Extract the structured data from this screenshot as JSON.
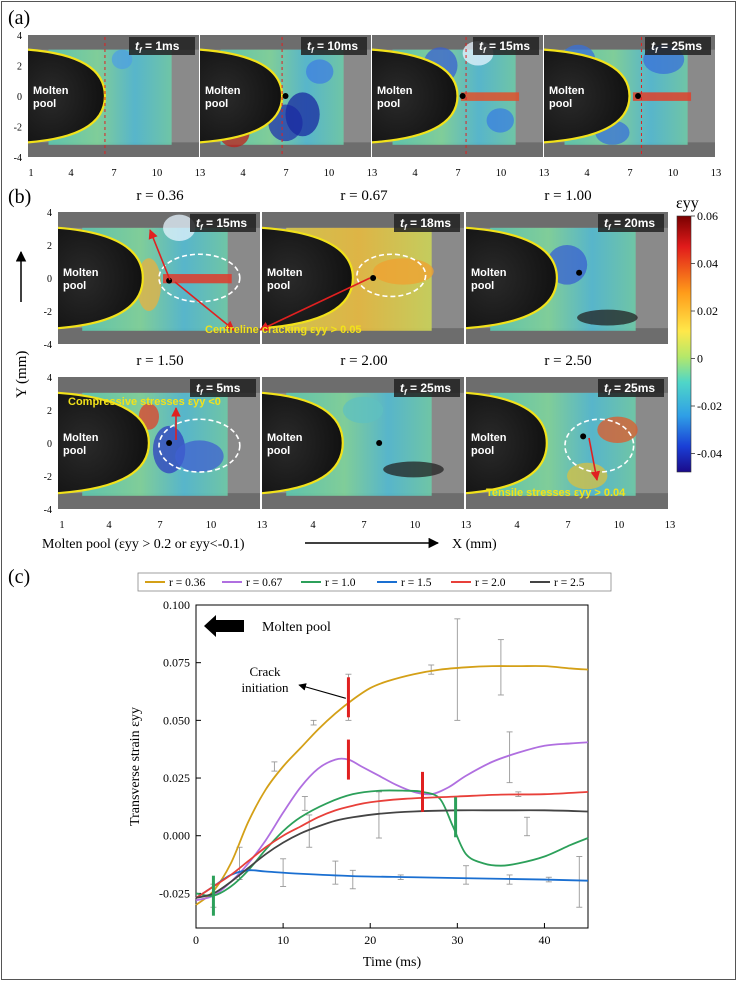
{
  "figure": {
    "panel_labels": [
      "(a)",
      "(b)",
      "(c)"
    ],
    "colorbar": {
      "label": "εyy",
      "ticks": [
        "0.06",
        "0.04",
        "0.02",
        "0",
        "-0.02",
        "-0.04"
      ]
    },
    "panel_a": {
      "frames": [
        {
          "time": "1ms"
        },
        {
          "time": "10ms"
        },
        {
          "time": "15ms"
        },
        {
          "time": "25ms"
        }
      ],
      "y_ticks": [
        "4",
        "2",
        "0",
        "-2",
        "-4"
      ],
      "x_ticks": [
        "1",
        "4",
        "7",
        "10",
        "13"
      ],
      "pool_label_line1": "Molten",
      "pool_label_line2": "pool"
    },
    "panel_b": {
      "frames": [
        {
          "ratio": "r = 0.36",
          "time": "15ms"
        },
        {
          "ratio": "r = 0.67",
          "time": "18ms"
        },
        {
          "ratio": "r = 1.00",
          "time": "20ms"
        },
        {
          "ratio": "r = 1.50",
          "time": "5ms"
        },
        {
          "ratio": "r = 2.00",
          "time": "25ms"
        },
        {
          "ratio": "r = 2.50",
          "time": "25ms"
        }
      ],
      "y_axis_label": "Y (mm)",
      "x_axis_label": "X (mm)",
      "y_ticks": [
        "4",
        "2",
        "0",
        "-2",
        "-4"
      ],
      "x_ticks": [
        "1",
        "4",
        "7",
        "10",
        "13"
      ],
      "annotations": {
        "centreline": "Centreline cracking εyy > 0.05",
        "compressive": "Compressive stresses εyy <0",
        "tensile": "Tensile stresses εyy > 0.04"
      },
      "footnote": "Molten pool (εyy > 0.2 or εyy<-0.1)",
      "time_prefix": "t",
      "time_sub": "f"
    }
  },
  "chart_data": {
    "type": "line",
    "title": "",
    "xlabel": "Time (ms)",
    "ylabel": "Transverse strain εyy",
    "xlim": [
      0,
      45
    ],
    "ylim": [
      -0.04,
      0.1
    ],
    "xticks": [
      0,
      10,
      20,
      30,
      40
    ],
    "yticks": [
      -0.025,
      0.0,
      0.025,
      0.05,
      0.075,
      0.1
    ],
    "ytick_labels": [
      "-0.025",
      "0.000",
      "0.025",
      "0.050",
      "0.075",
      "0.100"
    ],
    "legend_position": "top",
    "series": [
      {
        "name": "r = 0.36",
        "color": "#d4a017",
        "x": [
          0,
          2,
          4,
          6,
          8,
          10,
          12,
          14,
          16,
          18,
          20,
          22,
          25,
          28,
          31,
          34,
          37,
          40,
          43,
          45
        ],
        "y": [
          -0.03,
          -0.024,
          -0.012,
          0.006,
          0.02,
          0.03,
          0.038,
          0.046,
          0.053,
          0.059,
          0.064,
          0.067,
          0.07,
          0.072,
          0.073,
          0.0735,
          0.0735,
          0.0735,
          0.0725,
          0.072
        ]
      },
      {
        "name": "r = 0.67",
        "color": "#b06fe0",
        "x": [
          0,
          2,
          4,
          6,
          8,
          10,
          12,
          14,
          16,
          17.5,
          19,
          21,
          23,
          25,
          27,
          29,
          31,
          34,
          37,
          40,
          43,
          45
        ],
        "y": [
          -0.028,
          -0.026,
          -0.02,
          -0.012,
          -0.002,
          0.01,
          0.021,
          0.029,
          0.033,
          0.033,
          0.03,
          0.026,
          0.022,
          0.019,
          0.018,
          0.021,
          0.026,
          0.032,
          0.036,
          0.039,
          0.04,
          0.0405
        ]
      },
      {
        "name": "r = 1.0",
        "color": "#2ca05a",
        "x": [
          0,
          2,
          4,
          6,
          8,
          10,
          12,
          15,
          18,
          21,
          24,
          26,
          28,
          29.5,
          31,
          33,
          35,
          37,
          40,
          43,
          45
        ],
        "y": [
          -0.025,
          -0.026,
          -0.022,
          -0.015,
          -0.006,
          0.002,
          0.008,
          0.014,
          0.018,
          0.0195,
          0.0195,
          0.019,
          0.016,
          0.004,
          -0.008,
          -0.012,
          -0.013,
          -0.012,
          -0.009,
          -0.004,
          -0.001
        ]
      },
      {
        "name": "r = 1.5",
        "color": "#1a6fd1",
        "x": [
          0,
          2,
          4,
          6,
          8,
          12,
          18,
          25,
          32,
          40,
          45
        ],
        "y": [
          -0.027,
          -0.022,
          -0.017,
          -0.015,
          -0.0155,
          -0.0165,
          -0.0175,
          -0.018,
          -0.0185,
          -0.019,
          -0.0195
        ]
      },
      {
        "name": "r = 2.0",
        "color": "#e8403a",
        "x": [
          0,
          2,
          4,
          6,
          8,
          10,
          12,
          14,
          16,
          18,
          20,
          24,
          30,
          35,
          40,
          45
        ],
        "y": [
          -0.027,
          -0.022,
          -0.017,
          -0.011,
          -0.005,
          0.0,
          0.004,
          0.008,
          0.011,
          0.013,
          0.0145,
          0.016,
          0.017,
          0.0178,
          0.018,
          0.019
        ]
      },
      {
        "name": "r = 2.5",
        "color": "#444444",
        "x": [
          0,
          2,
          4,
          6,
          8,
          10,
          12,
          14,
          16,
          18,
          21,
          25,
          30,
          35,
          40,
          45
        ],
        "y": [
          -0.027,
          -0.025,
          -0.02,
          -0.014,
          -0.008,
          -0.003,
          0.001,
          0.004,
          0.0065,
          0.008,
          0.0095,
          0.0105,
          0.011,
          0.011,
          0.011,
          0.0105
        ]
      }
    ],
    "error_bars": [
      {
        "x": 2,
        "y": -0.026,
        "err": 0.005
      },
      {
        "x": 5,
        "y": -0.012,
        "err": 0.007
      },
      {
        "x": 9,
        "y": 0.03,
        "err": 0.002
      },
      {
        "x": 10,
        "y": -0.016,
        "err": 0.006
      },
      {
        "x": 12.5,
        "y": 0.014,
        "err": 0.003
      },
      {
        "x": 13,
        "y": 0.002,
        "err": 0.007
      },
      {
        "x": 13.5,
        "y": 0.049,
        "err": 0.001
      },
      {
        "x": 16,
        "y": -0.016,
        "err": 0.005
      },
      {
        "x": 17.5,
        "y": 0.06,
        "err": 0.01
      },
      {
        "x": 18,
        "y": -0.019,
        "err": 0.004
      },
      {
        "x": 21,
        "y": 0.009,
        "err": 0.01
      },
      {
        "x": 23.5,
        "y": -0.018,
        "err": 0.001
      },
      {
        "x": 27,
        "y": 0.072,
        "err": 0.002
      },
      {
        "x": 30,
        "y": 0.072,
        "err": 0.022
      },
      {
        "x": 31,
        "y": -0.017,
        "err": 0.004
      },
      {
        "x": 35,
        "y": 0.073,
        "err": 0.012
      },
      {
        "x": 36,
        "y": 0.034,
        "err": 0.011
      },
      {
        "x": 36,
        "y": -0.019,
        "err": 0.002
      },
      {
        "x": 37,
        "y": 0.018,
        "err": 0.001
      },
      {
        "x": 38,
        "y": 0.004,
        "err": 0.004
      },
      {
        "x": 40.5,
        "y": -0.019,
        "err": 0.001
      },
      {
        "x": 44,
        "y": -0.02,
        "err": 0.011
      }
    ],
    "markers": [
      {
        "x": 17.5,
        "y": 0.06,
        "color": "#e02020"
      },
      {
        "x": 17.5,
        "y": 0.033,
        "color": "#e02020"
      },
      {
        "x": 26,
        "y": 0.019,
        "color": "#e02020"
      },
      {
        "x": 29.8,
        "y": 0.008,
        "color": "#2ca05a"
      },
      {
        "x": 2,
        "y": -0.026,
        "color": "#2ca05a"
      }
    ],
    "annotations": {
      "molten_pool": "Molten pool",
      "crack_initiation": "Crack initiation"
    }
  }
}
